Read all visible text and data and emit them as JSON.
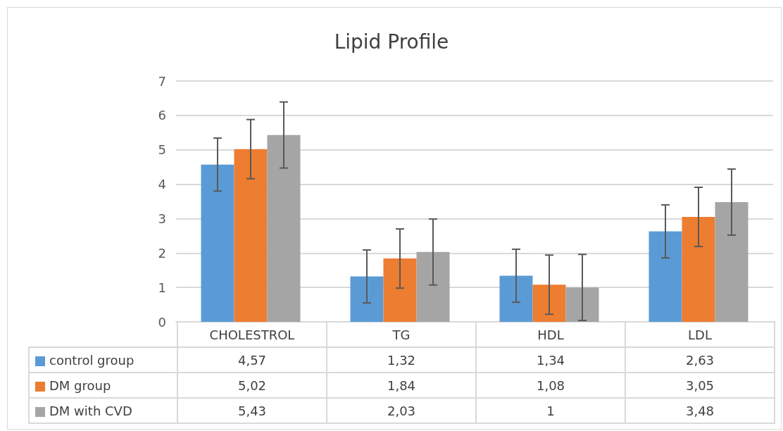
{
  "chart_data": {
    "type": "bar",
    "title": "Lipid Profile",
    "categories": [
      "CHOLESTROL",
      "TG",
      "HDL",
      "LDL"
    ],
    "series": [
      {
        "name": "control group",
        "color": "#5b9bd5",
        "values": [
          4.57,
          1.32,
          1.34,
          2.63
        ],
        "value_labels": [
          "4,57",
          "1,32",
          "1,34",
          "2,63"
        ],
        "errors": [
          0.77,
          0.77,
          0.77,
          0.77
        ]
      },
      {
        "name": "DM group",
        "color": "#ed7d31",
        "values": [
          5.02,
          1.84,
          1.08,
          3.05
        ],
        "value_labels": [
          "5,02",
          "1,84",
          "1,08",
          "3,05"
        ],
        "errors": [
          0.86,
          0.86,
          0.86,
          0.86
        ]
      },
      {
        "name": "DM with CVD",
        "color": "#a5a5a5",
        "values": [
          5.43,
          2.03,
          1,
          3.48
        ],
        "value_labels": [
          "5,43",
          "2,03",
          "1",
          "3,48"
        ],
        "errors": [
          0.96,
          0.96,
          0.96,
          0.96
        ]
      }
    ],
    "ylim": [
      0,
      7
    ],
    "yticks": [
      0,
      1,
      2,
      3,
      4,
      5,
      6,
      7
    ],
    "grid": "y",
    "legend": "bottom"
  }
}
